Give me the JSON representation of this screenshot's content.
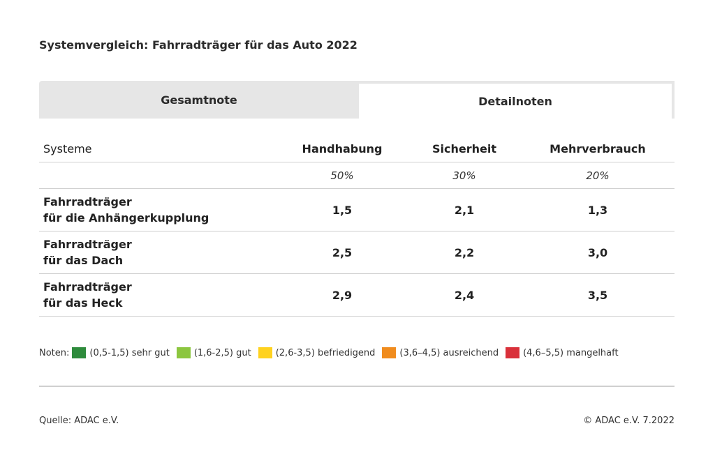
{
  "title": "Systemvergleich: Fahrradträger für das Auto 2022",
  "tabs": [
    {
      "label": "Gesamtnote",
      "active": false
    },
    {
      "label": "Detailnoten",
      "active": true
    }
  ],
  "table": {
    "headers": [
      "Systeme",
      "Handhabung",
      "Sicherheit",
      "Mehrverbrauch"
    ],
    "weights": [
      "",
      "50%",
      "30%",
      "20%"
    ],
    "rows": [
      {
        "line1": "Fahrradträger",
        "line2": "für die Anhängerkupplung",
        "values": [
          "1,5",
          "2,1",
          "1,3"
        ]
      },
      {
        "line1": "Fahrradträger",
        "line2": "für das Dach",
        "values": [
          "2,5",
          "2,2",
          "3,0"
        ]
      },
      {
        "line1": "Fahrradträger",
        "line2": "für das Heck",
        "values": [
          "2,9",
          "2,4",
          "3,5"
        ]
      }
    ]
  },
  "legend": {
    "label": "Noten:",
    "items": [
      {
        "text": "(0,5-1,5) sehr gut",
        "color": "#2e8b3c"
      },
      {
        "text": "(1,6-2,5) gut",
        "color": "#8cc63f"
      },
      {
        "text": "(2,6-3,5) befriedigend",
        "color": "#ffd21f"
      },
      {
        "text": "(3,6–4,5) ausreichend",
        "color": "#f08c1e"
      },
      {
        "text": "(4,6–5,5) mangelhaft",
        "color": "#d9303a"
      }
    ]
  },
  "footer": {
    "source": "Quelle: ADAC e.V.",
    "copyright": "© ADAC e.V. 7.2022"
  }
}
